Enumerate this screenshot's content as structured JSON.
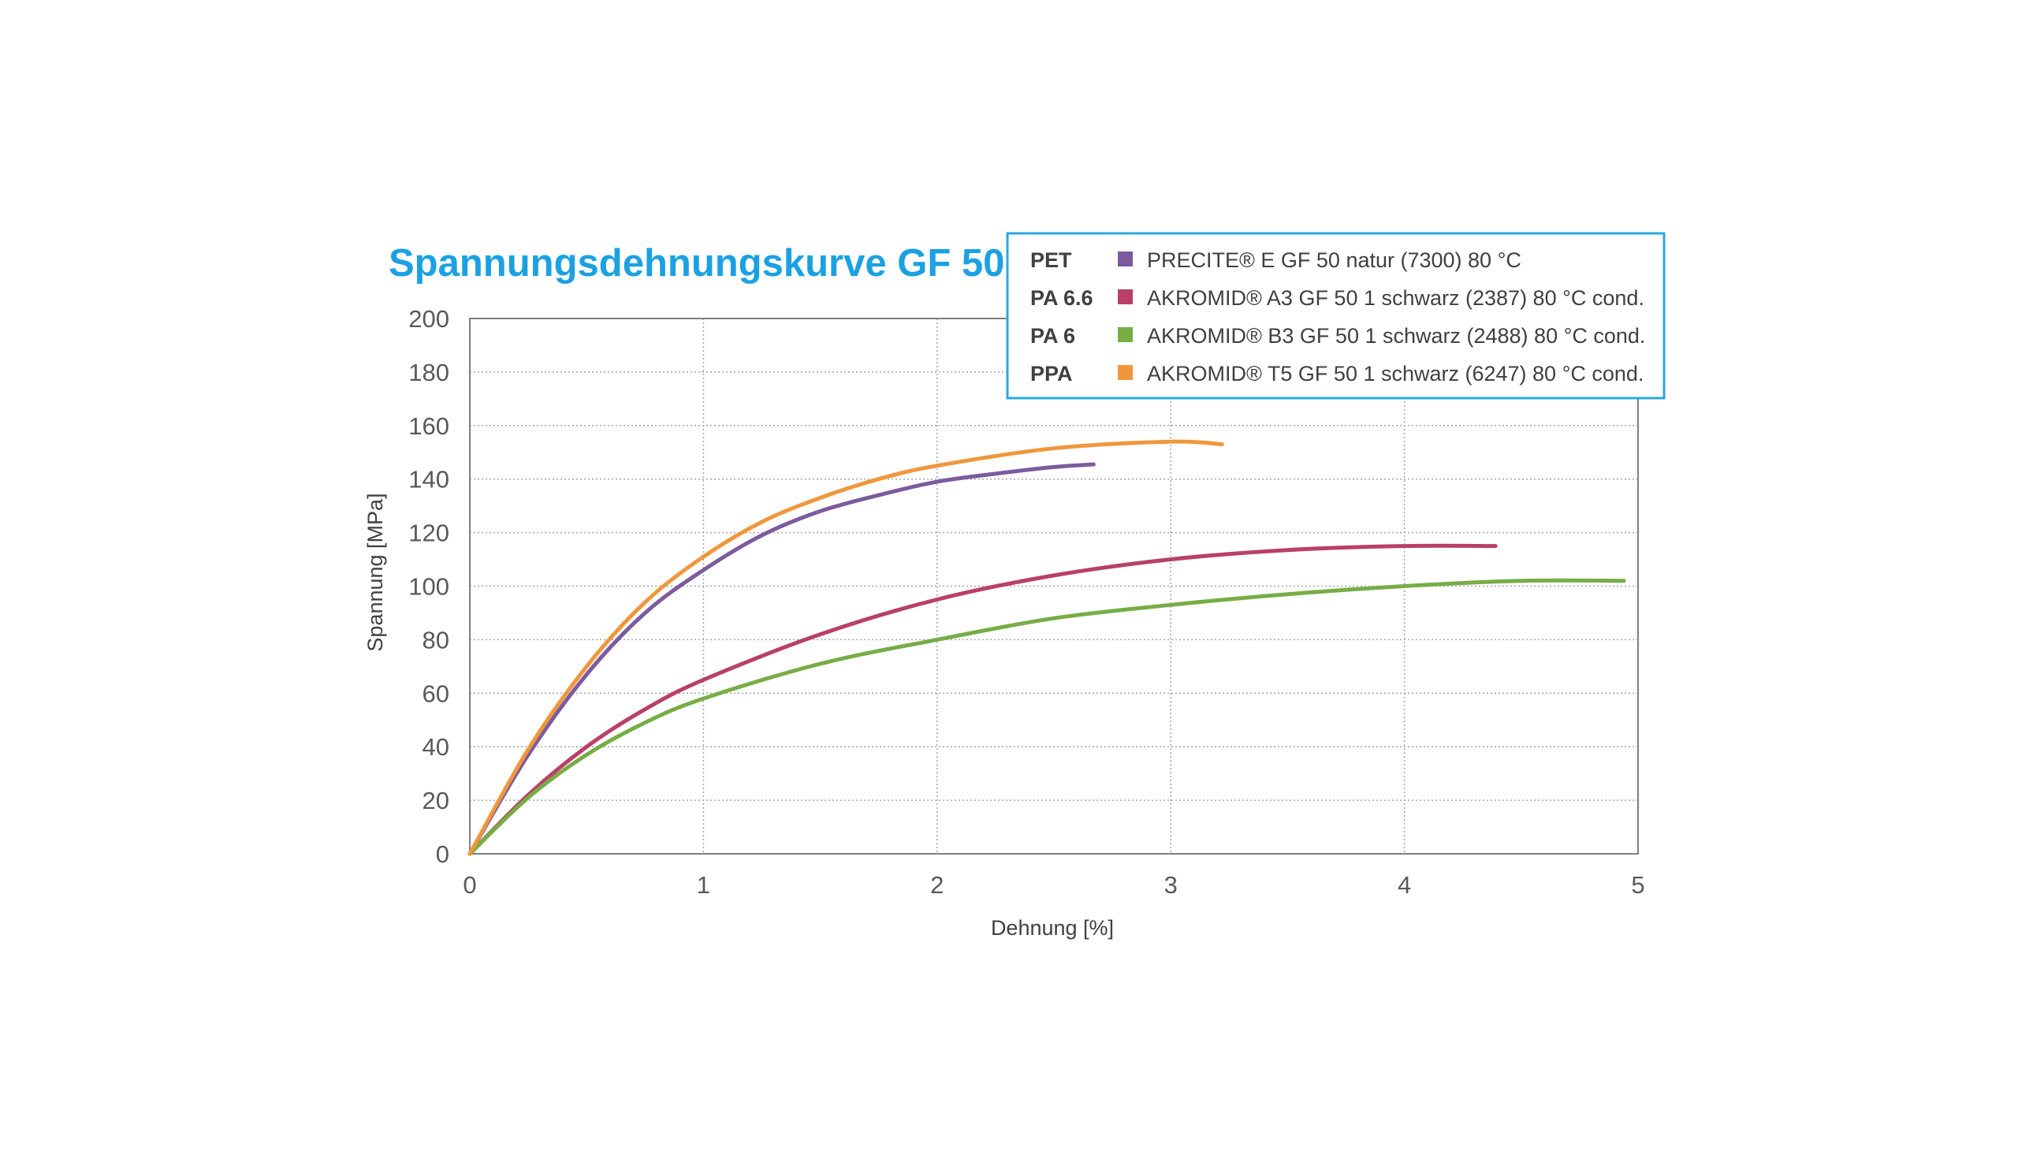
{
  "colors": {
    "title": "#1ba1e2",
    "legend_border": "#29a8e0",
    "axis": "#7f7f7f",
    "grid": "#a6a6a6",
    "text": "#595959"
  },
  "chart_data": {
    "type": "line",
    "title": "Spannungsdehnungskurve GF 50",
    "xlabel": "Dehnung [%]",
    "ylabel": "Spannung [MPa]",
    "xlim": [
      0,
      5
    ],
    "ylim": [
      0,
      200
    ],
    "xticks": [
      "0",
      "1",
      "2",
      "3",
      "4",
      "5"
    ],
    "yticks": [
      "0",
      "20",
      "40",
      "60",
      "80",
      "100",
      "120",
      "140",
      "160",
      "180",
      "200"
    ],
    "grid": "dotted",
    "legend_position": "top-right",
    "series": [
      {
        "abbr": "PET",
        "name": "PRECITE® E GF 50 natur (7300) 80 °C",
        "color": "#7b5b9e",
        "x": [
          0,
          0.25,
          0.5,
          0.75,
          1.0,
          1.25,
          1.5,
          1.75,
          2.0,
          2.25,
          2.5,
          2.67
        ],
        "y": [
          0,
          37,
          67,
          90,
          106,
          119,
          128,
          134,
          139,
          142,
          144.5,
          145.5
        ]
      },
      {
        "abbr": "PA 6.6",
        "name": "AKROMID® A3 GF 50 1 schwarz (2387) 80 °C cond.",
        "color": "#b94067",
        "x": [
          0,
          0.25,
          0.5,
          0.75,
          1.0,
          1.5,
          2.0,
          2.5,
          3.0,
          3.5,
          4.0,
          4.39
        ],
        "y": [
          0,
          22,
          40,
          54,
          65,
          82,
          95,
          104,
          110,
          113.5,
          115,
          115
        ]
      },
      {
        "abbr": "PA 6",
        "name": "AKROMID® B3 GF 50 1 schwarz (2488) 80 °C cond.",
        "color": "#77ad45",
        "x": [
          0,
          0.25,
          0.5,
          0.75,
          1.0,
          1.5,
          2.0,
          2.5,
          3.0,
          3.5,
          4.0,
          4.5,
          4.94
        ],
        "y": [
          0,
          21,
          37,
          49,
          58,
          71,
          80,
          88,
          93,
          97,
          100,
          102,
          102
        ]
      },
      {
        "abbr": "PPA",
        "name": "AKROMID® T5 GF 50 1 schwarz (6247) 80 °C cond.",
        "color": "#f0973c",
        "x": [
          0,
          0.25,
          0.5,
          0.75,
          1.0,
          1.25,
          1.5,
          1.75,
          2.0,
          2.5,
          3.0,
          3.22
        ],
        "y": [
          0,
          39,
          70,
          94,
          111,
          124,
          133,
          140,
          145,
          151.5,
          154,
          153
        ]
      }
    ]
  }
}
